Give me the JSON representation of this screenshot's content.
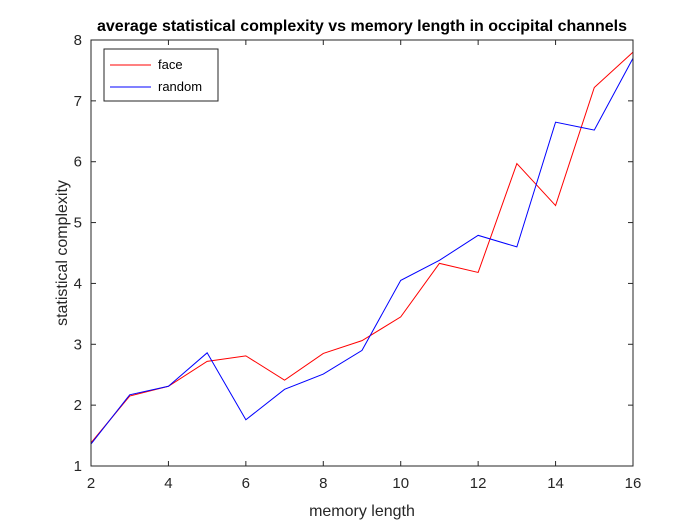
{
  "chart_data": {
    "type": "line",
    "title": "average statistical complexity vs memory length in occipital channels",
    "xlabel": "memory length",
    "ylabel": "statistical complexity",
    "xlim": [
      2,
      16
    ],
    "ylim": [
      1,
      8
    ],
    "xticks": [
      2,
      4,
      6,
      8,
      10,
      12,
      14,
      16
    ],
    "yticks": [
      1,
      2,
      3,
      4,
      5,
      6,
      7,
      8
    ],
    "x": [
      2,
      3,
      4,
      5,
      6,
      7,
      8,
      9,
      10,
      11,
      12,
      13,
      14,
      15,
      16
    ],
    "series": [
      {
        "name": "face",
        "color": "#ff0000",
        "values": [
          1.38,
          2.15,
          2.31,
          2.72,
          2.81,
          2.41,
          2.85,
          3.06,
          3.45,
          4.33,
          4.18,
          5.97,
          5.28,
          7.22,
          7.8
        ]
      },
      {
        "name": "random",
        "color": "#0000ff",
        "values": [
          1.36,
          2.17,
          2.31,
          2.86,
          1.76,
          2.26,
          2.51,
          2.9,
          4.05,
          4.38,
          4.79,
          4.6,
          6.65,
          6.52,
          7.7
        ]
      }
    ],
    "legend_position": "top-left",
    "grid": false
  }
}
